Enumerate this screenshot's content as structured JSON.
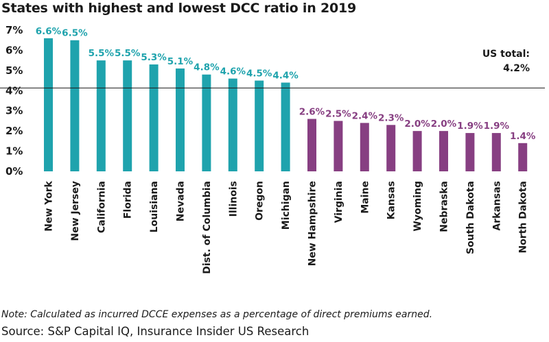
{
  "chart_data": {
    "type": "bar",
    "title": "States with highest and lowest DCC ratio in 2019",
    "xlabel": "",
    "ylabel": "",
    "ylim": [
      0,
      7
    ],
    "yticks": [
      "0%",
      "1%",
      "2%",
      "3%",
      "4%",
      "5%",
      "6%",
      "7%"
    ],
    "categories": [
      "New York",
      "New Jersey",
      "California",
      "Florida",
      "Louisiana",
      "Nevada",
      "Dist. of Columbia",
      "Illinois",
      "Oregon",
      "Michigan",
      "New Hampshire",
      "Virginia",
      "Maine",
      "Kansas",
      "Wyoming",
      "Nebraska",
      "South Dakota",
      "Arkansas",
      "North Dakota"
    ],
    "values": [
      6.6,
      6.5,
      5.5,
      5.5,
      5.3,
      5.1,
      4.8,
      4.6,
      4.5,
      4.4,
      2.6,
      2.5,
      2.4,
      2.3,
      2.0,
      2.0,
      1.9,
      1.9,
      1.4
    ],
    "value_labels": [
      "6.6%",
      "6.5%",
      "5.5%",
      "5.5%",
      "5.3%",
      "5.1%",
      "4.8%",
      "4.6%",
      "4.5%",
      "4.4%",
      "2.6%",
      "2.5%",
      "2.4%",
      "2.3%",
      "2.0%",
      "2.0%",
      "1.9%",
      "1.9%",
      "1.4%"
    ],
    "groups": [
      {
        "name": "highest",
        "count": 10,
        "color": "#1fa3ad"
      },
      {
        "name": "lowest",
        "count": 9,
        "color": "#873f82"
      }
    ],
    "reference_line": {
      "value": 4.2,
      "label_line1": "US total:",
      "label_line2": "4.2%"
    }
  },
  "footer": {
    "note": "Note: Calculated as incurred DCCE expenses as a percentage of direct premiums earned.",
    "source": "Source: S&P Capital IQ, Insurance Insider US Research"
  }
}
